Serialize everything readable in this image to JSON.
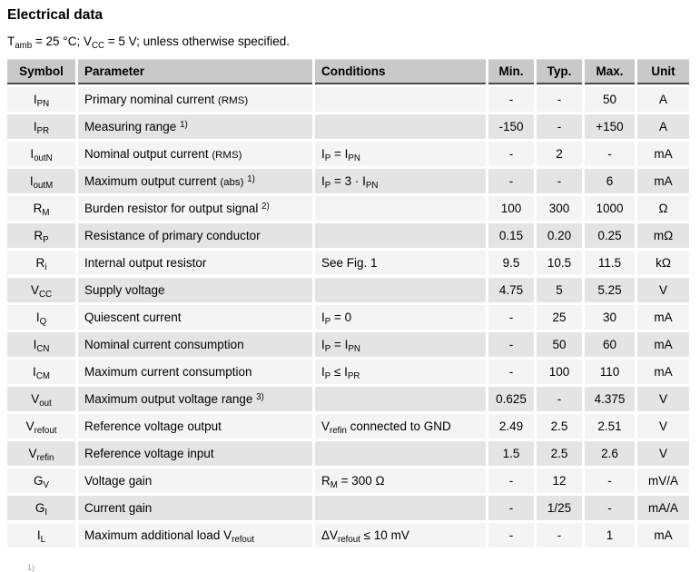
{
  "page": {
    "title": "Electrical data",
    "subtitle": [
      {
        "t": "x",
        "v": "T"
      },
      {
        "t": "sub",
        "v": "amb"
      },
      {
        "t": "x",
        "v": " = 25 °C; V"
      },
      {
        "t": "sub",
        "v": "CC"
      },
      {
        "t": "x",
        "v": " = 5 V; unless otherwise specified."
      }
    ],
    "footnote_marker": "1)"
  },
  "colors": {
    "header_bg": "#c9c9c9",
    "row_light": "#f4f4f4",
    "row_dark": "#e4e4e4",
    "header_border": "#4a4a4a"
  },
  "table": {
    "headers": [
      "Symbol",
      "Parameter",
      "Conditions",
      "Min.",
      "Typ.",
      "Max.",
      "Unit"
    ],
    "rows": [
      {
        "symbol": [
          {
            "t": "x",
            "v": "I"
          },
          {
            "t": "sub",
            "v": "PN"
          }
        ],
        "parameter": [
          {
            "t": "x",
            "v": "Primary nominal current "
          },
          {
            "t": "sm",
            "v": "(RMS)"
          }
        ],
        "conditions": [],
        "min": "-",
        "typ": "-",
        "max": "50",
        "unit": "A"
      },
      {
        "symbol": [
          {
            "t": "x",
            "v": "I"
          },
          {
            "t": "sub",
            "v": "PR"
          }
        ],
        "parameter": [
          {
            "t": "x",
            "v": "Measuring range "
          },
          {
            "t": "sup",
            "v": "1)"
          }
        ],
        "conditions": [],
        "min": "-150",
        "typ": "-",
        "max": "+150",
        "unit": "A"
      },
      {
        "symbol": [
          {
            "t": "x",
            "v": "I"
          },
          {
            "t": "sub",
            "v": "outN"
          }
        ],
        "parameter": [
          {
            "t": "x",
            "v": "Nominal output current "
          },
          {
            "t": "sm",
            "v": "(RMS)"
          }
        ],
        "conditions": [
          {
            "t": "x",
            "v": "I"
          },
          {
            "t": "sub",
            "v": "P"
          },
          {
            "t": "x",
            "v": " = I"
          },
          {
            "t": "sub",
            "v": "PN"
          }
        ],
        "min": "-",
        "typ": "2",
        "max": "-",
        "unit": "mA"
      },
      {
        "symbol": [
          {
            "t": "x",
            "v": "I"
          },
          {
            "t": "sub",
            "v": "outM"
          }
        ],
        "parameter": [
          {
            "t": "x",
            "v": "Maximum output current "
          },
          {
            "t": "sm",
            "v": "(abs)"
          },
          {
            "t": "x",
            "v": " "
          },
          {
            "t": "sup",
            "v": "1)"
          }
        ],
        "conditions": [
          {
            "t": "x",
            "v": "I"
          },
          {
            "t": "sub",
            "v": "P"
          },
          {
            "t": "x",
            "v": " = 3 · I"
          },
          {
            "t": "sub",
            "v": "PN"
          }
        ],
        "min": "-",
        "typ": "-",
        "max": "6",
        "unit": "mA"
      },
      {
        "symbol": [
          {
            "t": "x",
            "v": "R"
          },
          {
            "t": "sub",
            "v": "M"
          }
        ],
        "parameter": [
          {
            "t": "x",
            "v": "Burden resistor for output signal "
          },
          {
            "t": "sup",
            "v": "2)"
          }
        ],
        "conditions": [],
        "min": "100",
        "typ": "300",
        "max": "1000",
        "unit": "Ω"
      },
      {
        "symbol": [
          {
            "t": "x",
            "v": "R"
          },
          {
            "t": "sub",
            "v": "P"
          }
        ],
        "parameter": [
          {
            "t": "x",
            "v": "Resistance of primary conductor"
          }
        ],
        "conditions": [],
        "min": "0.15",
        "typ": "0.20",
        "max": "0.25",
        "unit": "mΩ"
      },
      {
        "symbol": [
          {
            "t": "x",
            "v": "R"
          },
          {
            "t": "sub",
            "v": "i"
          }
        ],
        "parameter": [
          {
            "t": "x",
            "v": "Internal output resistor"
          }
        ],
        "conditions": [
          {
            "t": "x",
            "v": "See Fig. 1"
          }
        ],
        "min": "9.5",
        "typ": "10.5",
        "max": "11.5",
        "unit": "kΩ"
      },
      {
        "symbol": [
          {
            "t": "x",
            "v": "V"
          },
          {
            "t": "sub",
            "v": "CC"
          }
        ],
        "parameter": [
          {
            "t": "x",
            "v": "Supply voltage"
          }
        ],
        "conditions": [],
        "min": "4.75",
        "typ": "5",
        "max": "5.25",
        "unit": "V"
      },
      {
        "symbol": [
          {
            "t": "x",
            "v": "I"
          },
          {
            "t": "sub",
            "v": "Q"
          }
        ],
        "parameter": [
          {
            "t": "x",
            "v": "Quiescent current"
          }
        ],
        "conditions": [
          {
            "t": "x",
            "v": "I"
          },
          {
            "t": "sub",
            "v": "P"
          },
          {
            "t": "x",
            "v": " = 0"
          }
        ],
        "min": "-",
        "typ": "25",
        "max": "30",
        "unit": "mA"
      },
      {
        "symbol": [
          {
            "t": "x",
            "v": "I"
          },
          {
            "t": "sub",
            "v": "CN"
          }
        ],
        "parameter": [
          {
            "t": "x",
            "v": "Nominal current consumption"
          }
        ],
        "conditions": [
          {
            "t": "x",
            "v": "I"
          },
          {
            "t": "sub",
            "v": "P"
          },
          {
            "t": "x",
            "v": " = I"
          },
          {
            "t": "sub",
            "v": "PN"
          }
        ],
        "min": "-",
        "typ": "50",
        "max": "60",
        "unit": "mA"
      },
      {
        "symbol": [
          {
            "t": "x",
            "v": "I"
          },
          {
            "t": "sub",
            "v": "CM"
          }
        ],
        "parameter": [
          {
            "t": "x",
            "v": "Maximum current consumption"
          }
        ],
        "conditions": [
          {
            "t": "x",
            "v": "I"
          },
          {
            "t": "sub",
            "v": "P"
          },
          {
            "t": "x",
            "v": " ≤ I"
          },
          {
            "t": "sub",
            "v": "PR"
          }
        ],
        "min": "-",
        "typ": "100",
        "max": "110",
        "unit": "mA"
      },
      {
        "symbol": [
          {
            "t": "x",
            "v": "V"
          },
          {
            "t": "sub",
            "v": "out"
          }
        ],
        "parameter": [
          {
            "t": "x",
            "v": "Maximum output voltage range "
          },
          {
            "t": "sup",
            "v": "3)"
          }
        ],
        "conditions": [],
        "min": "0.625",
        "typ": "-",
        "max": "4.375",
        "unit": "V"
      },
      {
        "symbol": [
          {
            "t": "x",
            "v": "V"
          },
          {
            "t": "sub",
            "v": "refout"
          }
        ],
        "parameter": [
          {
            "t": "x",
            "v": "Reference voltage output"
          }
        ],
        "conditions": [
          {
            "t": "x",
            "v": "V"
          },
          {
            "t": "sub",
            "v": "refin"
          },
          {
            "t": "x",
            "v": " connected to GND"
          }
        ],
        "min": "2.49",
        "typ": "2.5",
        "max": "2.51",
        "unit": "V"
      },
      {
        "symbol": [
          {
            "t": "x",
            "v": "V"
          },
          {
            "t": "sub",
            "v": "refin"
          }
        ],
        "parameter": [
          {
            "t": "x",
            "v": "Reference voltage input"
          }
        ],
        "conditions": [],
        "min": "1.5",
        "typ": "2.5",
        "max": "2.6",
        "unit": "V"
      },
      {
        "symbol": [
          {
            "t": "x",
            "v": "G"
          },
          {
            "t": "sub",
            "v": "V"
          }
        ],
        "parameter": [
          {
            "t": "x",
            "v": "Voltage gain"
          }
        ],
        "conditions": [
          {
            "t": "x",
            "v": "R"
          },
          {
            "t": "sub",
            "v": "M"
          },
          {
            "t": "x",
            "v": " = 300 Ω"
          }
        ],
        "min": "-",
        "typ": "12",
        "max": "-",
        "unit": "mV/A"
      },
      {
        "symbol": [
          {
            "t": "x",
            "v": "G"
          },
          {
            "t": "sub",
            "v": "I"
          }
        ],
        "parameter": [
          {
            "t": "x",
            "v": "Current gain"
          }
        ],
        "conditions": [],
        "min": "-",
        "typ": "1/25",
        "max": "-",
        "unit": "mA/A"
      },
      {
        "symbol": [
          {
            "t": "x",
            "v": "I"
          },
          {
            "t": "sub",
            "v": "L"
          }
        ],
        "parameter": [
          {
            "t": "x",
            "v": "Maximum additional load V"
          },
          {
            "t": "sub",
            "v": "refout"
          }
        ],
        "conditions": [
          {
            "t": "x",
            "v": "ΔV"
          },
          {
            "t": "sub",
            "v": "refout"
          },
          {
            "t": "x",
            "v": " ≤ 10 mV"
          }
        ],
        "min": "-",
        "typ": "-",
        "max": "1",
        "unit": "mA"
      }
    ]
  }
}
